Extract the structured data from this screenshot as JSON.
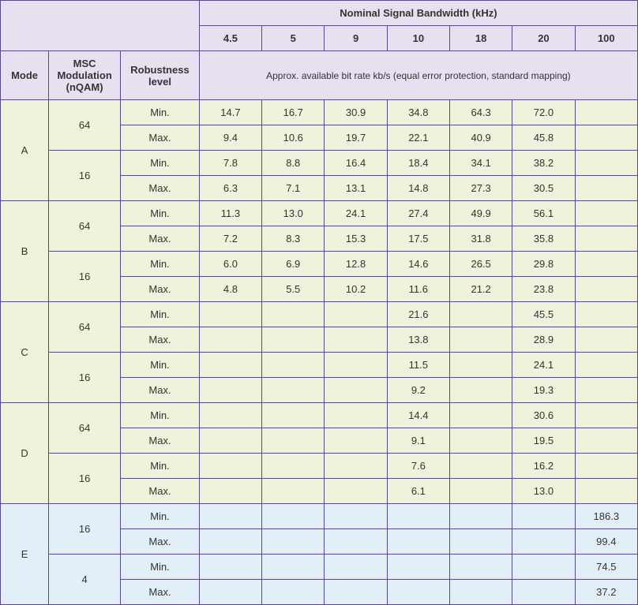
{
  "header": {
    "title": "Nominal Signal Bandwidth (kHz)",
    "mode": "Mode",
    "msc": "MSC Modulation (nQAM)",
    "robustness": "Robustness level",
    "subcaption": "Approx. available bit rate kb/s (equal error protection, standard mapping)",
    "bandwidths": [
      "4.5",
      "5",
      "9",
      "10",
      "18",
      "20",
      "100"
    ]
  },
  "modes": [
    {
      "mode": "A",
      "tint": "green",
      "groups": [
        {
          "mod": "64",
          "rows": [
            {
              "label": "Min.",
              "vals": [
                "14.7",
                "16.7",
                "30.9",
                "34.8",
                "64.3",
                "72.0",
                ""
              ]
            },
            {
              "label": "Max.",
              "vals": [
                "9.4",
                "10.6",
                "19.7",
                "22.1",
                "40.9",
                "45.8",
                ""
              ]
            }
          ]
        },
        {
          "mod": "16",
          "rows": [
            {
              "label": "Min.",
              "vals": [
                "7.8",
                "8.8",
                "16.4",
                "18.4",
                "34.1",
                "38.2",
                ""
              ]
            },
            {
              "label": "Max.",
              "vals": [
                "6.3",
                "7.1",
                "13.1",
                "14.8",
                "27.3",
                "30.5",
                ""
              ]
            }
          ]
        }
      ]
    },
    {
      "mode": "B",
      "tint": "green",
      "groups": [
        {
          "mod": "64",
          "rows": [
            {
              "label": "Min.",
              "vals": [
                "11.3",
                "13.0",
                "24.1",
                "27.4",
                "49.9",
                "56.1",
                ""
              ]
            },
            {
              "label": "Max.",
              "vals": [
                "7.2",
                "8.3",
                "15.3",
                "17.5",
                "31.8",
                "35.8",
                ""
              ]
            }
          ]
        },
        {
          "mod": "16",
          "rows": [
            {
              "label": "Min.",
              "vals": [
                "6.0",
                "6.9",
                "12.8",
                "14.6",
                "26.5",
                "29.8",
                ""
              ]
            },
            {
              "label": "Max.",
              "vals": [
                "4.8",
                "5.5",
                "10.2",
                "11.6",
                "21.2",
                "23.8",
                ""
              ]
            }
          ]
        }
      ]
    },
    {
      "mode": "C",
      "tint": "green",
      "groups": [
        {
          "mod": "64",
          "rows": [
            {
              "label": "Min.",
              "vals": [
                "",
                "",
                "",
                "21.6",
                "",
                "45.5",
                ""
              ]
            },
            {
              "label": "Max.",
              "vals": [
                "",
                "",
                "",
                "13.8",
                "",
                "28.9",
                ""
              ]
            }
          ]
        },
        {
          "mod": "16",
          "rows": [
            {
              "label": "Min.",
              "vals": [
                "",
                "",
                "",
                "11.5",
                "",
                "24.1",
                ""
              ]
            },
            {
              "label": "Max.",
              "vals": [
                "",
                "",
                "",
                "9.2",
                "",
                "19.3",
                ""
              ]
            }
          ]
        }
      ]
    },
    {
      "mode": "D",
      "tint": "green",
      "groups": [
        {
          "mod": "64",
          "rows": [
            {
              "label": "Min.",
              "vals": [
                "",
                "",
                "",
                "14.4",
                "",
                "30.6",
                ""
              ]
            },
            {
              "label": "Max.",
              "vals": [
                "",
                "",
                "",
                "9.1",
                "",
                "19.5",
                ""
              ]
            }
          ]
        },
        {
          "mod": "16",
          "rows": [
            {
              "label": "Min.",
              "vals": [
                "",
                "",
                "",
                "7.6",
                "",
                "16.2",
                ""
              ]
            },
            {
              "label": "Max.",
              "vals": [
                "",
                "",
                "",
                "6.1",
                "",
                "13.0",
                ""
              ]
            }
          ]
        }
      ]
    },
    {
      "mode": "E",
      "tint": "blue",
      "groups": [
        {
          "mod": "16",
          "rows": [
            {
              "label": "Min.",
              "vals": [
                "",
                "",
                "",
                "",
                "",
                "",
                "186.3"
              ]
            },
            {
              "label": "Max.",
              "vals": [
                "",
                "",
                "",
                "",
                "",
                "",
                "99.4"
              ]
            }
          ]
        },
        {
          "mod": "4",
          "rows": [
            {
              "label": "Min.",
              "vals": [
                "",
                "",
                "",
                "",
                "",
                "",
                "74.5"
              ]
            },
            {
              "label": "Max.",
              "vals": [
                "",
                "",
                "",
                "",
                "",
                "",
                "37.2"
              ]
            }
          ]
        }
      ]
    }
  ],
  "colors": {
    "border": "#584a8a",
    "header_bg": "#e8e0f0",
    "green_bg": "#f0f3dc",
    "blue_bg": "#e3eff8"
  }
}
